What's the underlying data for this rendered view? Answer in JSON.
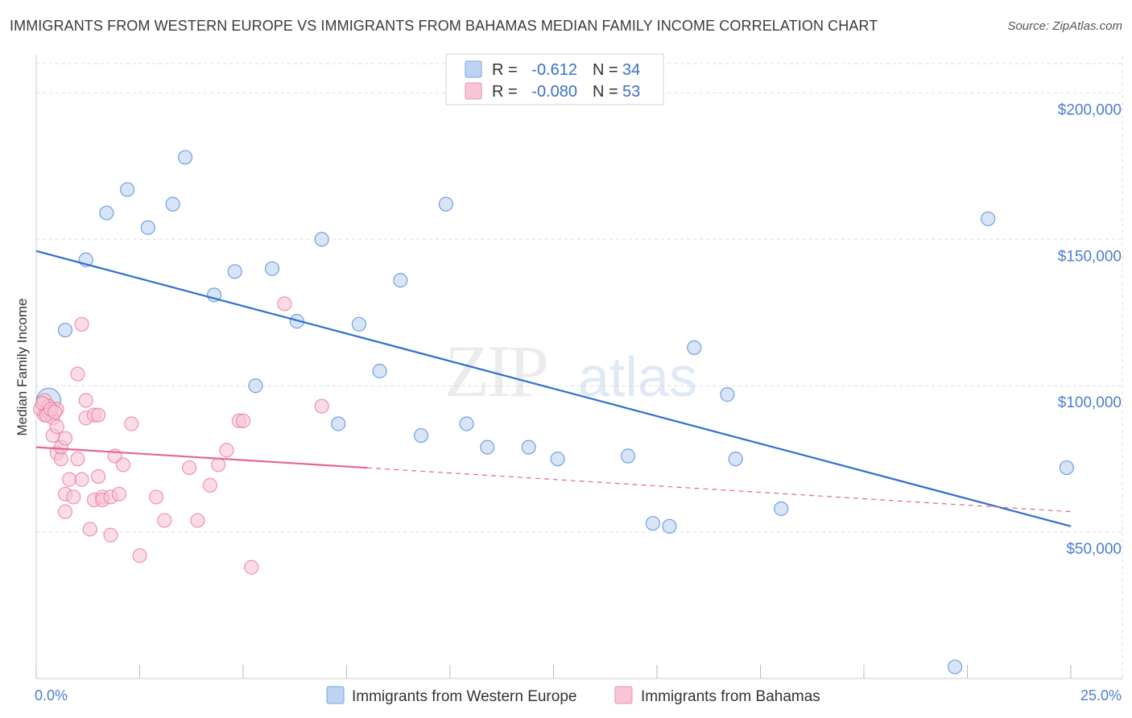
{
  "title": "IMMIGRANTS FROM WESTERN EUROPE VS IMMIGRANTS FROM BAHAMAS MEDIAN FAMILY INCOME CORRELATION CHART",
  "source": "Source: ZipAtlas.com",
  "watermark": {
    "zip": "ZIP",
    "atlas": "atlas"
  },
  "colors": {
    "blue": "#4a86d8",
    "blue_fill": "#bcd4f2",
    "pink": "#e8769b",
    "pink_fill": "#f8c5d5",
    "axis_text": "#4a7fcf",
    "grid": "#dddddd"
  },
  "legend": {
    "rows": [
      {
        "r_label": "R =",
        "r_value": "-0.612",
        "n_label": "N =",
        "n_value": "34"
      },
      {
        "r_label": "R =",
        "r_value": "-0.080",
        "n_label": "N =",
        "n_value": "53"
      }
    ]
  },
  "chart_data": {
    "type": "scatter",
    "xlabel": "",
    "ylabel": "Median Family Income",
    "xlim": [
      0,
      25
    ],
    "ylim": [
      0,
      210000
    ],
    "x_tick_labels": [
      "0.0%",
      "25.0%"
    ],
    "y_ticks": [
      50000,
      100000,
      150000,
      200000
    ],
    "y_tick_labels": [
      "$50,000",
      "$100,000",
      "$150,000",
      "$200,000"
    ],
    "grid": true,
    "series": [
      {
        "name": "Immigrants from Western Europe",
        "color": "blue",
        "trend": {
          "x": [
            0,
            25
          ],
          "y": [
            146000,
            52000
          ],
          "dashed_from": null
        },
        "points": [
          {
            "x": 0.3,
            "y": 95000,
            "big": true
          },
          {
            "x": 0.7,
            "y": 119000
          },
          {
            "x": 1.2,
            "y": 143000
          },
          {
            "x": 1.7,
            "y": 159000
          },
          {
            "x": 2.2,
            "y": 167000
          },
          {
            "x": 2.7,
            "y": 154000
          },
          {
            "x": 3.3,
            "y": 162000
          },
          {
            "x": 3.6,
            "y": 178000
          },
          {
            "x": 4.3,
            "y": 131000
          },
          {
            "x": 4.8,
            "y": 139000
          },
          {
            "x": 5.3,
            "y": 100000
          },
          {
            "x": 5.7,
            "y": 140000
          },
          {
            "x": 6.3,
            "y": 122000
          },
          {
            "x": 6.9,
            "y": 150000
          },
          {
            "x": 7.3,
            "y": 87000
          },
          {
            "x": 7.8,
            "y": 121000
          },
          {
            "x": 8.3,
            "y": 105000
          },
          {
            "x": 8.8,
            "y": 136000
          },
          {
            "x": 9.3,
            "y": 83000
          },
          {
            "x": 9.9,
            "y": 162000
          },
          {
            "x": 10.4,
            "y": 87000
          },
          {
            "x": 10.9,
            "y": 79000
          },
          {
            "x": 11.9,
            "y": 79000
          },
          {
            "x": 12.6,
            "y": 75000
          },
          {
            "x": 14.3,
            "y": 76000
          },
          {
            "x": 14.9,
            "y": 53000
          },
          {
            "x": 15.3,
            "y": 52000
          },
          {
            "x": 15.9,
            "y": 113000
          },
          {
            "x": 16.7,
            "y": 97000
          },
          {
            "x": 16.9,
            "y": 75000
          },
          {
            "x": 18.0,
            "y": 58000
          },
          {
            "x": 22.2,
            "y": 4000
          },
          {
            "x": 23.0,
            "y": 157000
          },
          {
            "x": 24.9,
            "y": 72000
          }
        ]
      },
      {
        "name": "Immigrants from Bahamas",
        "color": "pink",
        "trend": {
          "x": [
            0,
            25
          ],
          "y": [
            79000,
            57000
          ],
          "dashed_from": 8.0
        },
        "points": [
          {
            "x": 0.1,
            "y": 92000
          },
          {
            "x": 0.2,
            "y": 95000
          },
          {
            "x": 0.2,
            "y": 90000
          },
          {
            "x": 0.3,
            "y": 93000
          },
          {
            "x": 0.3,
            "y": 91000
          },
          {
            "x": 0.4,
            "y": 89000
          },
          {
            "x": 0.4,
            "y": 83000
          },
          {
            "x": 0.5,
            "y": 86000
          },
          {
            "x": 0.5,
            "y": 77000
          },
          {
            "x": 0.5,
            "y": 92000
          },
          {
            "x": 0.6,
            "y": 75000
          },
          {
            "x": 0.6,
            "y": 79000
          },
          {
            "x": 0.7,
            "y": 82000
          },
          {
            "x": 0.7,
            "y": 63000
          },
          {
            "x": 0.7,
            "y": 57000
          },
          {
            "x": 0.8,
            "y": 68000
          },
          {
            "x": 0.9,
            "y": 62000
          },
          {
            "x": 1.0,
            "y": 104000
          },
          {
            "x": 1.0,
            "y": 75000
          },
          {
            "x": 1.1,
            "y": 68000
          },
          {
            "x": 1.1,
            "y": 121000
          },
          {
            "x": 1.2,
            "y": 95000
          },
          {
            "x": 1.2,
            "y": 89000
          },
          {
            "x": 1.3,
            "y": 51000
          },
          {
            "x": 1.4,
            "y": 61000
          },
          {
            "x": 1.4,
            "y": 90000
          },
          {
            "x": 1.5,
            "y": 69000
          },
          {
            "x": 1.5,
            "y": 90000
          },
          {
            "x": 1.6,
            "y": 62000
          },
          {
            "x": 1.6,
            "y": 61000
          },
          {
            "x": 1.8,
            "y": 49000
          },
          {
            "x": 1.8,
            "y": 62000
          },
          {
            "x": 1.9,
            "y": 76000
          },
          {
            "x": 2.0,
            "y": 63000
          },
          {
            "x": 2.1,
            "y": 73000
          },
          {
            "x": 2.3,
            "y": 87000
          },
          {
            "x": 2.5,
            "y": 42000
          },
          {
            "x": 2.9,
            "y": 62000
          },
          {
            "x": 3.1,
            "y": 54000
          },
          {
            "x": 3.7,
            "y": 72000
          },
          {
            "x": 3.9,
            "y": 54000
          },
          {
            "x": 4.2,
            "y": 66000
          },
          {
            "x": 4.4,
            "y": 73000
          },
          {
            "x": 4.6,
            "y": 78000
          },
          {
            "x": 4.9,
            "y": 88000
          },
          {
            "x": 5.0,
            "y": 88000
          },
          {
            "x": 5.2,
            "y": 38000
          },
          {
            "x": 6.0,
            "y": 128000
          },
          {
            "x": 6.9,
            "y": 93000
          },
          {
            "x": 0.15,
            "y": 94000
          },
          {
            "x": 0.25,
            "y": 90000
          },
          {
            "x": 0.35,
            "y": 92000
          },
          {
            "x": 0.45,
            "y": 91000
          }
        ]
      }
    ]
  },
  "bottom_legend": [
    {
      "label": "Immigrants from Western Europe",
      "color": "blue"
    },
    {
      "label": "Immigrants from Bahamas",
      "color": "pink"
    }
  ]
}
